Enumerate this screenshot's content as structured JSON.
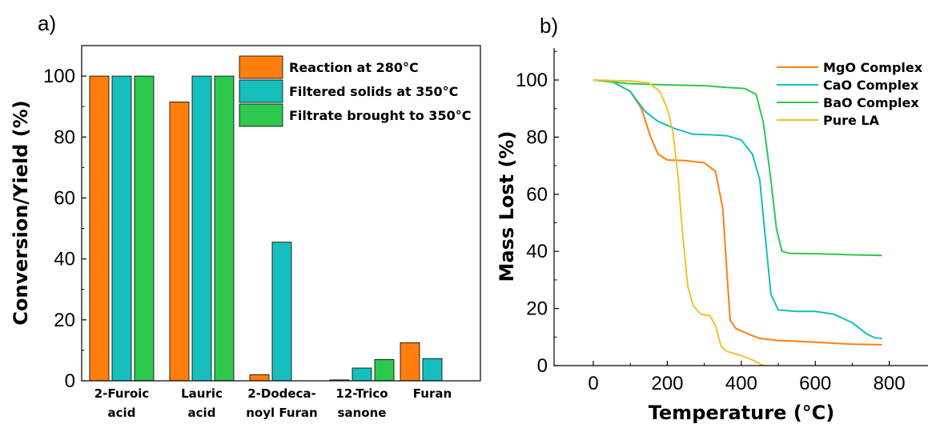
{
  "chart_data": [
    {
      "panel_label": "a)",
      "type": "bar",
      "categories": [
        [
          "2-Furoic",
          "acid"
        ],
        [
          "Lauric",
          "acid"
        ],
        [
          "2-Dodeca-",
          "noyl Furan"
        ],
        [
          "12-Trico",
          "sanone"
        ],
        [
          "Furan",
          ""
        ]
      ],
      "ylabel": "Conversion/Yield (%)",
      "xlabel": "",
      "ylim": [
        0,
        110
      ],
      "yticks": [
        0,
        20,
        40,
        60,
        80,
        100
      ],
      "grid": false,
      "legend_position": "top-right",
      "series": [
        {
          "name": "Reaction at 280°C",
          "color": "#FF7F0E",
          "values": [
            100,
            91.5,
            2,
            0.3,
            12.5
          ]
        },
        {
          "name": "Filtered solids at 350°C",
          "color": "#17BEBE",
          "values": [
            100,
            100,
            45.5,
            4.2,
            7.3
          ]
        },
        {
          "name": "Filtrate brought to 350°C",
          "color": "#2DC84D",
          "values": [
            100,
            100,
            null,
            7,
            null
          ]
        }
      ]
    },
    {
      "panel_label": "b)",
      "type": "line",
      "xlabel": "Temperature (°C)",
      "ylabel": "Mass Lost (%)",
      "xlim": [
        -100,
        900
      ],
      "ylim": [
        0,
        118
      ],
      "xticks": [
        0,
        200,
        400,
        600,
        800
      ],
      "yticks": [
        0,
        20,
        40,
        60,
        80,
        100
      ],
      "grid": false,
      "legend_position": "top-right",
      "series": [
        {
          "name": "MgO Complex",
          "color": "#FF7F0E",
          "points": [
            [
              0,
              100
            ],
            [
              50,
              99.5
            ],
            [
              100,
              96
            ],
            [
              130,
              90
            ],
            [
              155,
              80
            ],
            [
              175,
              74
            ],
            [
              200,
              72
            ],
            [
              250,
              71.8
            ],
            [
              300,
              71
            ],
            [
              330,
              68
            ],
            [
              350,
              55
            ],
            [
              360,
              35
            ],
            [
              370,
              16
            ],
            [
              385,
              13
            ],
            [
              420,
              11
            ],
            [
              450,
              9.5
            ],
            [
              500,
              8.8
            ],
            [
              600,
              8.2
            ],
            [
              700,
              7.5
            ],
            [
              780,
              7.3
            ]
          ]
        },
        {
          "name": "CaO Complex",
          "color": "#17BEBE",
          "points": [
            [
              0,
              100
            ],
            [
              50,
              99.5
            ],
            [
              100,
              96
            ],
            [
              140,
              89
            ],
            [
              175,
              85.5
            ],
            [
              220,
              83
            ],
            [
              270,
              81
            ],
            [
              320,
              80.8
            ],
            [
              360,
              80.5
            ],
            [
              400,
              79
            ],
            [
              430,
              74
            ],
            [
              450,
              65
            ],
            [
              465,
              45
            ],
            [
              480,
              25
            ],
            [
              500,
              19.5
            ],
            [
              550,
              19
            ],
            [
              600,
              19
            ],
            [
              650,
              18
            ],
            [
              700,
              15
            ],
            [
              740,
              11
            ],
            [
              760,
              9.8
            ],
            [
              780,
              9.5
            ]
          ]
        },
        {
          "name": "BaO Complex",
          "color": "#2DC84D",
          "points": [
            [
              0,
              100
            ],
            [
              50,
              99.3
            ],
            [
              100,
              98.7
            ],
            [
              200,
              98.3
            ],
            [
              300,
              98
            ],
            [
              350,
              97.5
            ],
            [
              410,
              97
            ],
            [
              440,
              95
            ],
            [
              460,
              85
            ],
            [
              480,
              65
            ],
            [
              495,
              48
            ],
            [
              510,
              40
            ],
            [
              530,
              39.3
            ],
            [
              600,
              39.2
            ],
            [
              700,
              38.8
            ],
            [
              780,
              38.6
            ]
          ]
        },
        {
          "name": "Pure LA",
          "color": "#F5C02B",
          "points": [
            [
              0,
              100
            ],
            [
              50,
              99.8
            ],
            [
              100,
              99.7
            ],
            [
              150,
              99
            ],
            [
              180,
              96
            ],
            [
              200,
              90
            ],
            [
              215,
              82
            ],
            [
              230,
              65
            ],
            [
              240,
              48
            ],
            [
              255,
              28
            ],
            [
              270,
              21
            ],
            [
              290,
              18
            ],
            [
              315,
              17.5
            ],
            [
              330,
              14
            ],
            [
              345,
              7
            ],
            [
              360,
              5
            ],
            [
              400,
              3.5
            ],
            [
              430,
              2
            ],
            [
              460,
              0
            ]
          ]
        }
      ]
    }
  ]
}
